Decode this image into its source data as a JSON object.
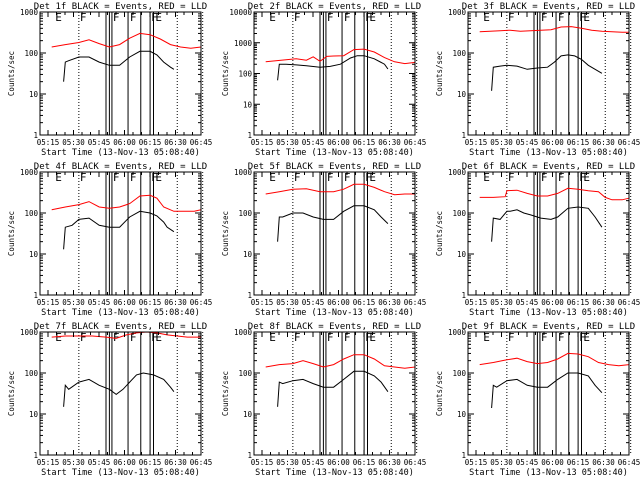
{
  "chart_data": {
    "type": "line",
    "layout": "grid-3x3",
    "colors": {
      "events": "#000000",
      "lld": "#ff0000",
      "axes": "#000000",
      "background": "#ffffff"
    },
    "legend": "in-title",
    "x_tick_labels": [
      "05:15",
      "05:30",
      "05:45",
      "06:00",
      "06:15",
      "06:30",
      "06:45"
    ],
    "x_range_minutes": [
      5.1,
      100
    ],
    "x_tick_minutes": [
      15,
      30,
      45,
      60,
      75,
      90,
      105
    ],
    "x_origin": "05:00",
    "xlabel": "Start Time (13-Nov-13 05:08:40)",
    "ylabel": "Counts/sec",
    "yscale": "log",
    "marker_lines": {
      "dotted_minutes": [
        28,
        86,
        101
      ],
      "solid_minutes": [
        44,
        46,
        47.5,
        57,
        64.5,
        70,
        72
      ],
      "labels": [
        {
          "text": "E",
          "minute": 13.5
        },
        {
          "text": "F",
          "minute": 28
        },
        {
          "text": "F",
          "minute": 47.5
        },
        {
          "text": "F",
          "minute": 57.5
        },
        {
          "text": "F",
          "minute": 70
        },
        {
          "text": "E",
          "minute": 72.5
        }
      ]
    },
    "panels": [
      {
        "title": "Det 1f BLACK = Events, RED = LLD",
        "ylim": [
          1,
          1000
        ],
        "y_ticks": [
          "1",
          "10",
          "100",
          "1000"
        ],
        "series": [
          {
            "name": "LLD",
            "color": "#ff0000",
            "x": [
              12,
              20,
              28,
              34,
              40,
              46,
              52,
              58,
              64,
              70,
              76,
              82,
              88,
              94,
              100
            ],
            "y": [
              140,
              160,
              180,
              210,
              170,
              140,
              160,
              230,
              300,
              280,
              220,
              160,
              140,
              130,
              140
            ]
          },
          {
            "name": "Events",
            "color": "#000000",
            "x": [
              19,
              20,
              22,
              28,
              34,
              40,
              46,
              52,
              58,
              64,
              70,
              74,
              78,
              82,
              84
            ],
            "y": [
              20,
              60,
              65,
              80,
              80,
              60,
              50,
              50,
              80,
              110,
              110,
              90,
              60,
              45,
              40
            ]
          }
        ]
      },
      {
        "title": "Det 2f BLACK = Events, RED = LLD",
        "ylim": [
          1,
          10000
        ],
        "y_ticks": [
          "1",
          "10",
          "100",
          "1000",
          "10000"
        ],
        "series": [
          {
            "name": "LLD",
            "color": "#ff0000",
            "x": [
              12,
              18,
              24,
              30,
              36,
              40,
              44,
              48,
              52,
              58,
              64,
              70,
              76,
              82,
              88,
              94,
              100
            ],
            "y": [
              240,
              260,
              280,
              300,
              270,
              350,
              250,
              360,
              370,
              380,
              600,
              620,
              500,
              330,
              240,
              210,
              230
            ]
          },
          {
            "name": "Events",
            "color": "#000000",
            "x": [
              19,
              20,
              24,
              30,
              36,
              44,
              50,
              56,
              62,
              66,
              70,
              76,
              82,
              84
            ],
            "y": [
              60,
              200,
              200,
              190,
              180,
              160,
              170,
              200,
              320,
              380,
              380,
              300,
              200,
              140
            ]
          }
        ]
      },
      {
        "title": "Det 3f BLACK = Events, RED = LLD",
        "ylim": [
          1,
          1000
        ],
        "y_ticks": [
          "1",
          "10",
          "100",
          "1000"
        ],
        "series": [
          {
            "name": "LLD",
            "color": "#ff0000",
            "x": [
              12,
              18,
              24,
              30,
              36,
              42,
              48,
              54,
              60,
              66,
              72,
              78,
              84,
              90,
              96,
              100
            ],
            "y": [
              330,
              340,
              350,
              360,
              340,
              350,
              360,
              370,
              430,
              440,
              400,
              360,
              340,
              330,
              320,
              320
            ]
          },
          {
            "name": "Events",
            "color": "#000000",
            "x": [
              19,
              20,
              24,
              28,
              34,
              40,
              46,
              52,
              56,
              60,
              64,
              68,
              72,
              76,
              80,
              84
            ],
            "y": [
              12,
              45,
              48,
              50,
              48,
              40,
              43,
              45,
              60,
              85,
              90,
              85,
              70,
              50,
              40,
              32
            ]
          }
        ]
      },
      {
        "title": "Det 4f BLACK = Events, RED = LLD",
        "ylim": [
          1,
          1000
        ],
        "y_ticks": [
          "1",
          "10",
          "100",
          "1000"
        ],
        "series": [
          {
            "name": "LLD",
            "color": "#ff0000",
            "x": [
              12,
              20,
              28,
              34,
              40,
              46,
              52,
              58,
              64,
              70,
              74,
              78,
              84,
              90,
              96,
              100
            ],
            "y": [
              120,
              140,
              160,
              190,
              140,
              130,
              140,
              170,
              260,
              270,
              230,
              140,
              110,
              110,
              110,
              120
            ]
          },
          {
            "name": "Events",
            "color": "#000000",
            "x": [
              19,
              20,
              24,
              28,
              34,
              40,
              46,
              52,
              58,
              64,
              70,
              74,
              78,
              80,
              84
            ],
            "y": [
              13,
              45,
              50,
              70,
              75,
              50,
              45,
              45,
              80,
              110,
              100,
              85,
              60,
              45,
              35
            ]
          }
        ]
      },
      {
        "title": "Det 5f BLACK = Events, RED = LLD",
        "ylim": [
          1,
          1000
        ],
        "y_ticks": [
          "1",
          "10",
          "100",
          "1000"
        ],
        "series": [
          {
            "name": "LLD",
            "color": "#ff0000",
            "x": [
              12,
              20,
              28,
              36,
              44,
              52,
              58,
              64,
              70,
              76,
              82,
              88,
              94,
              100
            ],
            "y": [
              290,
              330,
              380,
              390,
              330,
              330,
              380,
              500,
              500,
              420,
              330,
              280,
              290,
              290
            ]
          },
          {
            "name": "Events",
            "color": "#000000",
            "x": [
              19,
              20,
              22,
              28,
              34,
              40,
              46,
              52,
              58,
              64,
              70,
              76,
              80,
              84
            ],
            "y": [
              20,
              80,
              80,
              100,
              100,
              80,
              70,
              70,
              110,
              150,
              150,
              120,
              80,
              55
            ]
          }
        ]
      },
      {
        "title": "Det 6f BLACK = Events, RED = LLD",
        "ylim": [
          1,
          1000
        ],
        "y_ticks": [
          "1",
          "10",
          "100",
          "1000"
        ],
        "series": [
          {
            "name": "LLD",
            "color": "#ff0000",
            "x": [
              12,
              20,
              27,
              28,
              34,
              40,
              46,
              52,
              58,
              64,
              70,
              76,
              82,
              86,
              90,
              96,
              100
            ],
            "y": [
              240,
              240,
              250,
              350,
              360,
              300,
              260,
              260,
              300,
              400,
              380,
              350,
              330,
              240,
              210,
              210,
              230
            ]
          },
          {
            "name": "Events",
            "color": "#000000",
            "x": [
              19,
              20,
              24,
              28,
              30,
              34,
              38,
              42,
              48,
              54,
              58,
              64,
              70,
              76,
              80,
              84
            ],
            "y": [
              20,
              75,
              70,
              110,
              110,
              120,
              100,
              90,
              75,
              70,
              80,
              130,
              140,
              130,
              80,
              45
            ]
          }
        ]
      },
      {
        "title": "Det 7f BLACK = Events, RED = LLD",
        "ylim": [
          1,
          1000
        ],
        "y_ticks": [
          "1",
          "10",
          "100",
          "1000"
        ],
        "series": [
          {
            "name": "LLD",
            "color": "#ff0000",
            "x": [
              12,
              20,
              28,
              36,
              44,
              50,
              56,
              62,
              68,
              74,
              80,
              86,
              92,
              100
            ],
            "y": [
              750,
              800,
              800,
              800,
              750,
              700,
              850,
              950,
              1000,
              950,
              850,
              800,
              750,
              750
            ]
          },
          {
            "name": "Events",
            "color": "#000000",
            "x": [
              19,
              20,
              22,
              28,
              34,
              40,
              46,
              50,
              54,
              58,
              62,
              66,
              72,
              78,
              82,
              84
            ],
            "y": [
              15,
              50,
              40,
              60,
              70,
              50,
              40,
              30,
              40,
              60,
              90,
              100,
              90,
              70,
              45,
              35
            ]
          }
        ]
      },
      {
        "title": "Det 8f BLACK = Events, RED = LLD",
        "ylim": [
          1,
          1000
        ],
        "y_ticks": [
          "1",
          "10",
          "100",
          "1000"
        ],
        "series": [
          {
            "name": "LLD",
            "color": "#ff0000",
            "x": [
              12,
              20,
              28,
              34,
              40,
              46,
              52,
              58,
              64,
              70,
              76,
              82,
              88,
              94,
              100
            ],
            "y": [
              140,
              160,
              170,
              200,
              170,
              140,
              160,
              220,
              280,
              280,
              220,
              150,
              140,
              130,
              140
            ]
          },
          {
            "name": "Events",
            "color": "#000000",
            "x": [
              19,
              20,
              22,
              28,
              34,
              40,
              46,
              52,
              58,
              64,
              70,
              76,
              80,
              84
            ],
            "y": [
              15,
              60,
              55,
              65,
              70,
              55,
              45,
              45,
              70,
              110,
              110,
              85,
              60,
              35
            ]
          }
        ]
      },
      {
        "title": "Det 9f BLACK = Events, RED = LLD",
        "ylim": [
          1,
          1000
        ],
        "y_ticks": [
          "1",
          "10",
          "100",
          "1000"
        ],
        "series": [
          {
            "name": "LLD",
            "color": "#ff0000",
            "x": [
              12,
              20,
              28,
              34,
              40,
              46,
              52,
              58,
              64,
              70,
              76,
              82,
              88,
              94,
              100
            ],
            "y": [
              160,
              180,
              210,
              230,
              190,
              170,
              180,
              220,
              300,
              290,
              250,
              180,
              160,
              150,
              160
            ]
          },
          {
            "name": "Events",
            "color": "#000000",
            "x": [
              19,
              20,
              22,
              28,
              34,
              40,
              46,
              52,
              58,
              64,
              70,
              76,
              80,
              84
            ],
            "y": [
              14,
              50,
              45,
              65,
              70,
              50,
              45,
              45,
              70,
              100,
              100,
              85,
              50,
              33
            ]
          }
        ]
      }
    ]
  }
}
